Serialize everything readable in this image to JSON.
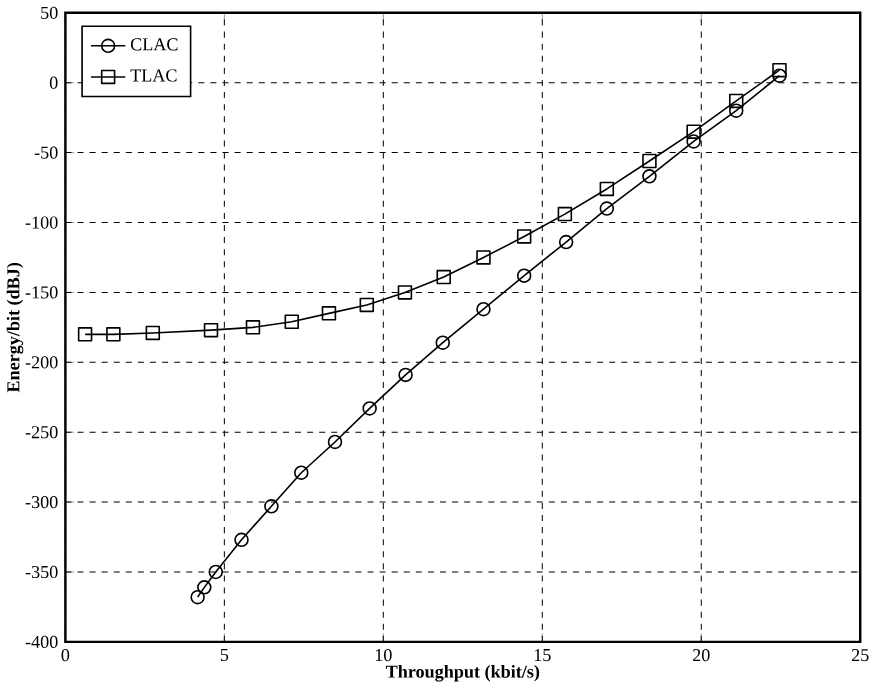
{
  "chart_data": {
    "type": "line",
    "xlabel": "Throughput  (kbit/s)",
    "ylabel": "Energy/bit (dBJ)",
    "xlim": [
      0,
      25
    ],
    "ylim": [
      -400,
      50
    ],
    "xticks": [
      0,
      5,
      10,
      15,
      20,
      25
    ],
    "yticks": [
      -400,
      -350,
      -300,
      -250,
      -200,
      -150,
      -100,
      -50,
      0,
      50
    ],
    "grid": true,
    "legend": "top left",
    "line_style": "solid",
    "series": [
      {
        "name": "CLAC",
        "color": "#000000",
        "marker": "circle",
        "x": [
          4.16,
          4.37,
          4.73,
          5.54,
          6.48,
          7.42,
          8.48,
          9.57,
          10.7,
          11.87,
          13.15,
          14.43,
          15.75,
          17.03,
          18.37,
          19.76,
          21.1,
          22.46
        ],
        "values": [
          -368,
          -361,
          -350,
          -327,
          -303,
          -279,
          -257,
          -233,
          -209,
          -186,
          -162,
          -138,
          -114,
          -90,
          -67,
          -42,
          -20,
          5
        ]
      },
      {
        "name": "TLAC",
        "color": "#000000",
        "marker": "square",
        "x": [
          0.62,
          1.51,
          2.75,
          4.58,
          5.9,
          7.12,
          8.29,
          9.48,
          10.68,
          11.9,
          13.15,
          14.43,
          15.71,
          17.03,
          18.37,
          19.76,
          21.1,
          22.46
        ],
        "values": [
          -180,
          -180,
          -179,
          -177,
          -175,
          -171,
          -165,
          -159,
          -150,
          -139,
          -125,
          -110,
          -94,
          -76,
          -56,
          -35,
          -13,
          9
        ]
      }
    ]
  }
}
